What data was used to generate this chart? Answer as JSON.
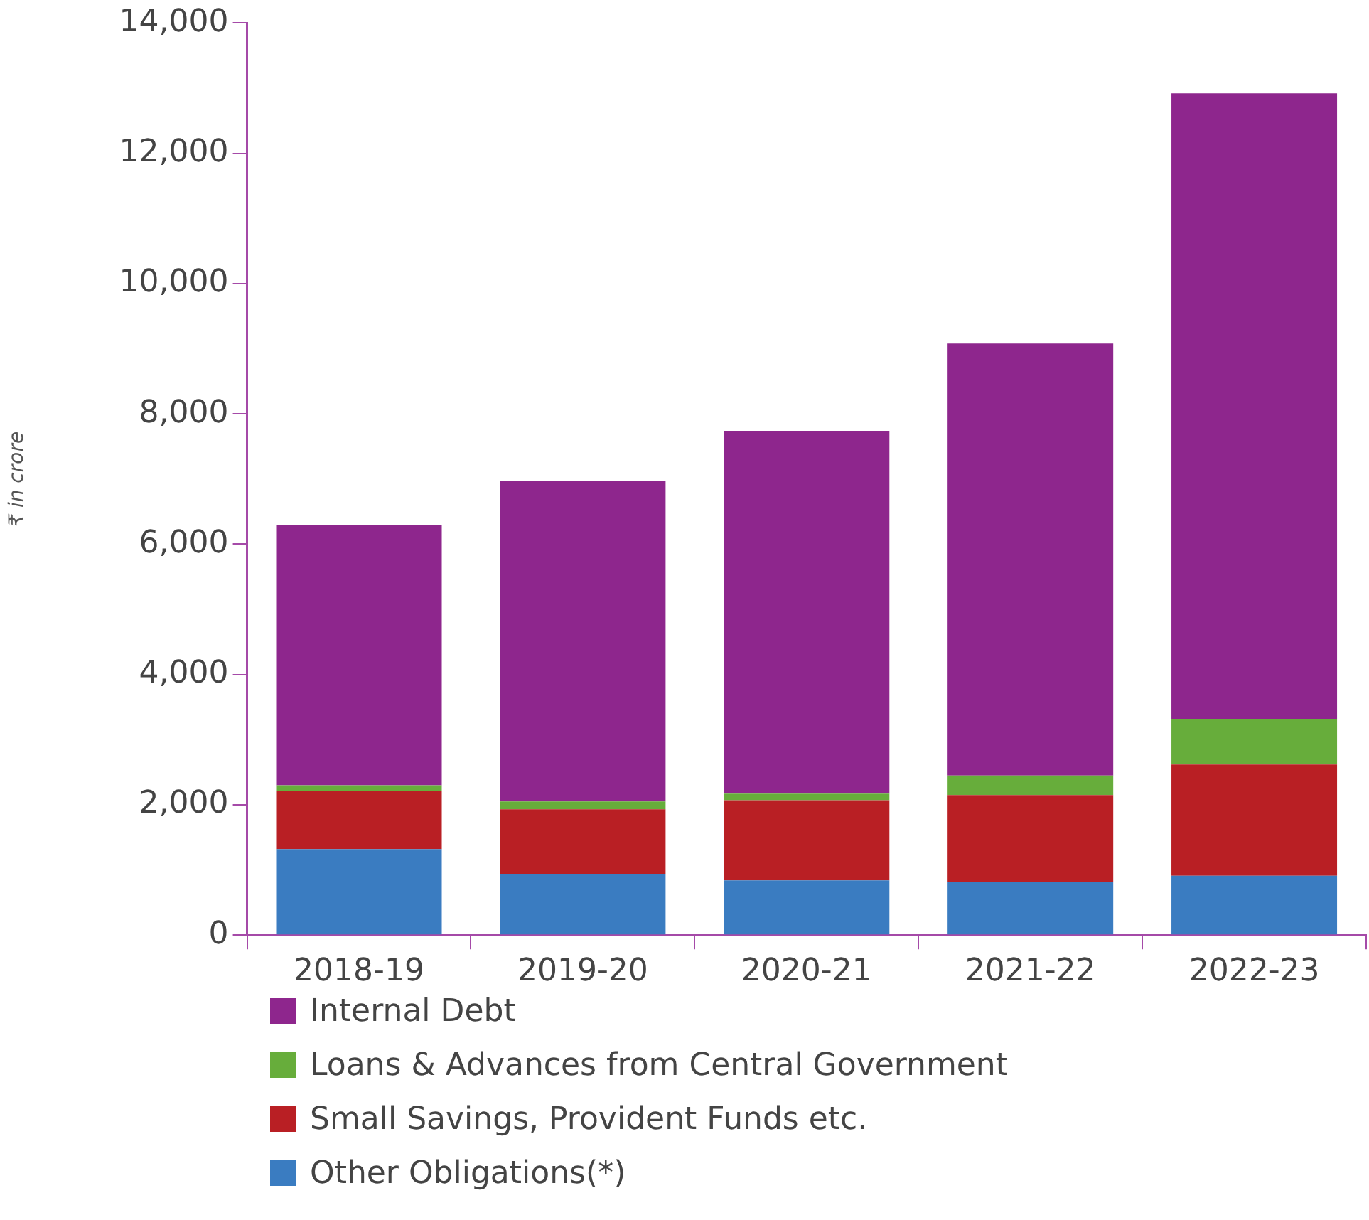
{
  "chart_data": {
    "type": "bar",
    "stacked": true,
    "ylabel": "₹ in crore",
    "categories": [
      "2018-19",
      "2019-20",
      "2020-21",
      "2021-22",
      "2022-23"
    ],
    "series": [
      {
        "name": "Other Obligations(*)",
        "color": "#3a7cc1",
        "values": [
          1320,
          930,
          840,
          820,
          910
        ]
      },
      {
        "name": "Small Savings, Provident Funds etc.",
        "color": "#b91f24",
        "values": [
          890,
          1000,
          1230,
          1330,
          1710
        ]
      },
      {
        "name": "Loans & Advances from Central Government",
        "color": "#67ad3b",
        "values": [
          90,
          120,
          100,
          300,
          690
        ]
      },
      {
        "name": "Internal Debt",
        "color": "#8e268d",
        "values": [
          4000,
          4920,
          5570,
          6630,
          9610
        ]
      }
    ],
    "ylim": [
      0,
      14000
    ],
    "yticks": [
      0,
      {
        "value": 2000,
        "label": "2,000"
      },
      {
        "value": 4000,
        "label": "4,000"
      },
      {
        "value": 6000,
        "label": "6,000"
      },
      {
        "value": 8000,
        "label": "8,000"
      },
      {
        "value": 10000,
        "label": "10,000"
      },
      {
        "value": 12000,
        "label": "12,000"
      },
      {
        "value": 14000,
        "label": "14,000"
      }
    ],
    "grid": false,
    "legend": "bottom"
  }
}
